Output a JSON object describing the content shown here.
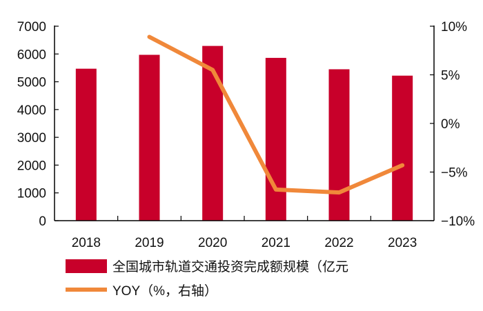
{
  "chart_data": {
    "type": "bar+line",
    "categories": [
      "2018",
      "2019",
      "2020",
      "2021",
      "2022",
      "2023"
    ],
    "series": [
      {
        "name": "全国城市轨道交通投资完成额规模（亿元",
        "type": "bar",
        "axis": "left",
        "color": "#C8002A",
        "values": [
          5470,
          5970,
          6290,
          5860,
          5450,
          5220
        ]
      },
      {
        "name": "YOY（%，右轴）",
        "type": "line",
        "axis": "right",
        "color": "#F0883A",
        "values": [
          null,
          8.9,
          5.5,
          -6.8,
          -7.1,
          -4.3
        ]
      }
    ],
    "left_axis": {
      "ylim": [
        0,
        7000
      ],
      "ticks": [
        "0",
        "1000",
        "2000",
        "3000",
        "4000",
        "5000",
        "6000",
        "7000"
      ]
    },
    "right_axis": {
      "ylim": [
        -10,
        10
      ],
      "ticks": [
        "-10%",
        "-5%",
        "0%",
        "5%",
        "10%"
      ]
    },
    "grid": false,
    "legend_position": "bottom"
  }
}
